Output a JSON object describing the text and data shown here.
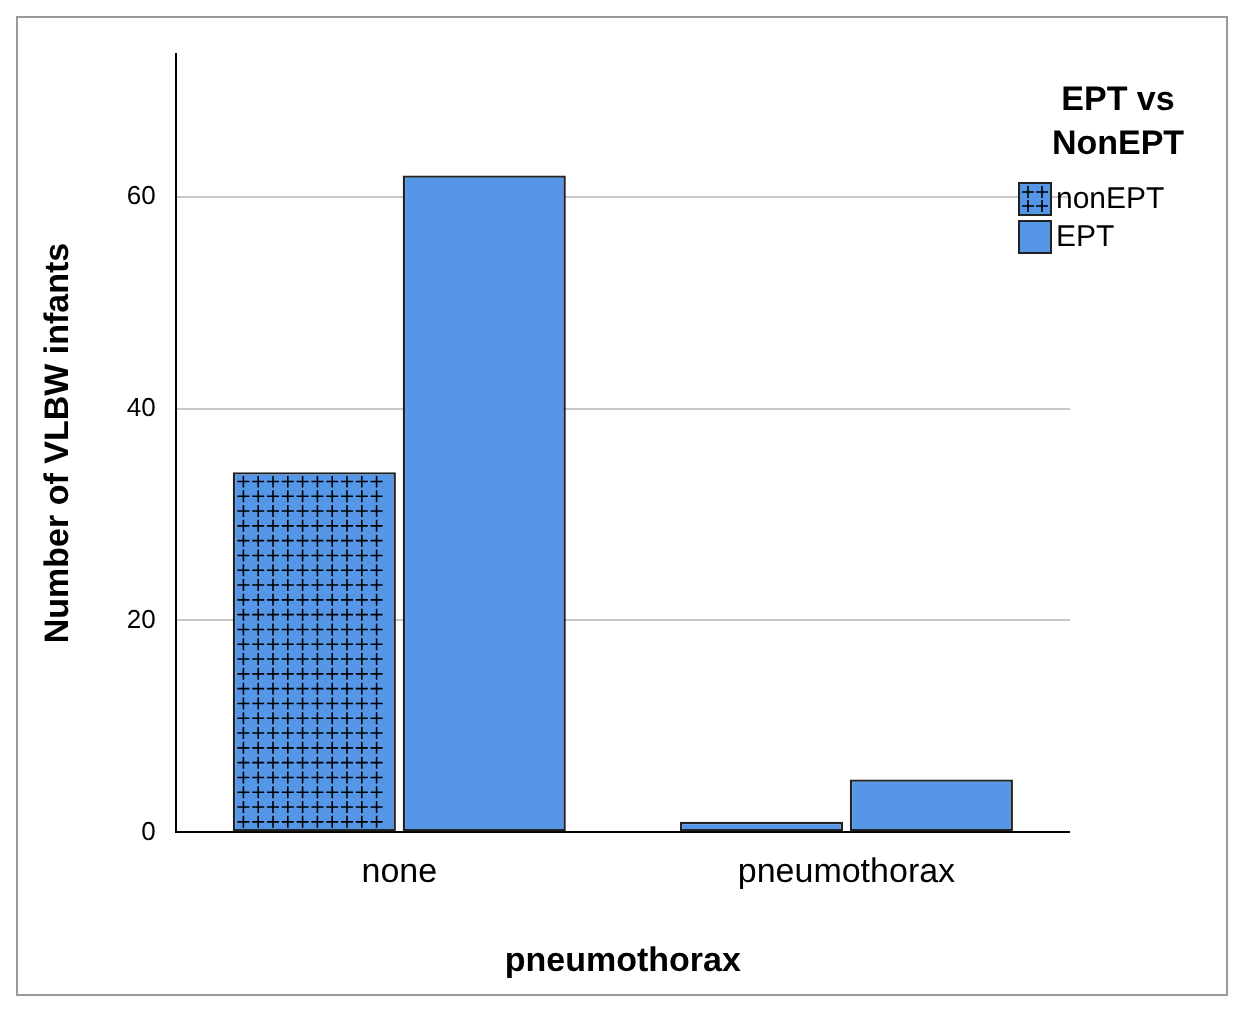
{
  "chart_data": {
    "type": "bar",
    "xlabel": "pneumothorax",
    "ylabel": "Number of VLBW infants",
    "legend_title": "EPT vs NonEPT",
    "legend": "top right",
    "categories": [
      "none",
      "pneumothorax"
    ],
    "series": [
      {
        "name": "nonEPT",
        "color": "#5596e6",
        "values": [
          34,
          1
        ]
      },
      {
        "name": "EPT",
        "color": "#5596e6",
        "values": [
          62,
          5
        ]
      }
    ],
    "ylim": [
      0,
      73.5
    ],
    "yticks": [
      0,
      20,
      40,
      60
    ],
    "grid": "y"
  }
}
